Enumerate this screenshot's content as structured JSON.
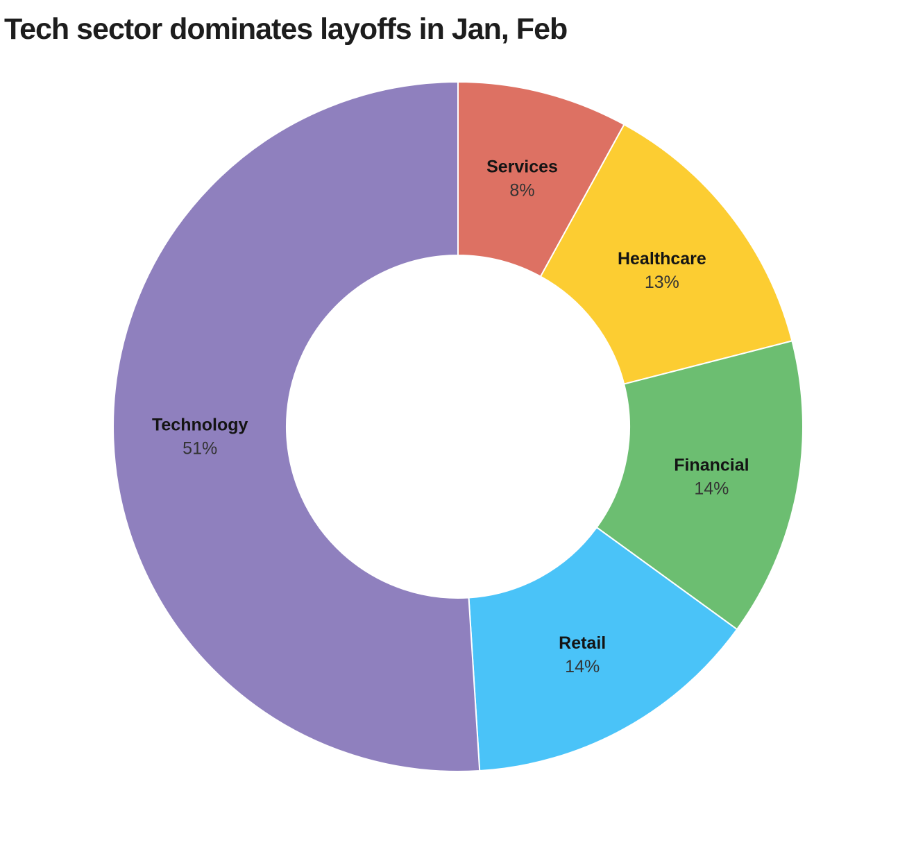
{
  "chart_data": {
    "type": "pie",
    "donut": true,
    "title": "Tech sector dominates layoffs in Jan, Feb",
    "direction": "clockwise",
    "start_angle_deg": 0,
    "legend": "none",
    "label_style": "name and percent inside slices",
    "series": [
      {
        "label": "Services",
        "value": 8,
        "percent_label": "8%",
        "color": "#dd7163"
      },
      {
        "label": "Healthcare",
        "value": 13,
        "percent_label": "13%",
        "color": "#fccd32"
      },
      {
        "label": "Financial",
        "value": 14,
        "percent_label": "14%",
        "color": "#6cbe71"
      },
      {
        "label": "Retail",
        "value": 14,
        "percent_label": "14%",
        "color": "#4ac3f8"
      },
      {
        "label": "Technology",
        "value": 51,
        "percent_label": "51%",
        "color": "#8f80be"
      }
    ],
    "colors": {
      "background": "#ffffff",
      "title_text": "#1d1d1d",
      "slice_name_text": "#141414",
      "slice_percent_text": "#333333",
      "slice_separator": "#ffffff"
    }
  }
}
